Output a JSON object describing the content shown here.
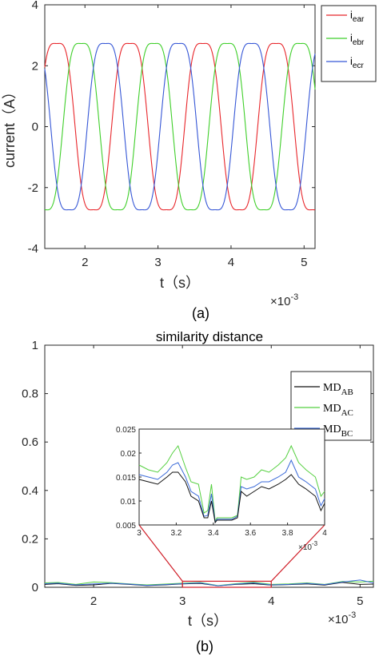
{
  "chart_data": [
    {
      "type": "line",
      "caption": "(a)",
      "ylabel": "current（A）",
      "xlabel": "t（s）",
      "x_exponent": "×10",
      "x_exponent_power": "-3",
      "xlim": [
        1.45,
        5.15
      ],
      "ylim": [
        -4,
        4
      ],
      "xticks": [
        "2",
        "3",
        "4",
        "5"
      ],
      "yticks": [
        "4",
        "2",
        "0",
        "-2",
        "-4"
      ],
      "period_ms": 1.0,
      "amplitude": 3.1,
      "series": [
        {
          "name": "i",
          "sub": "ear",
          "color": "#e8262b",
          "phase_deg": 0
        },
        {
          "name": "i",
          "sub": "ebr",
          "color": "#3fcf2a",
          "phase_deg": -120
        },
        {
          "name": "i",
          "sub": "ecr",
          "color": "#3657d6",
          "phase_deg": 120
        }
      ]
    },
    {
      "type": "line",
      "caption": "(b)",
      "title": "similarity distance",
      "xlabel": "t（s）",
      "x_exponent": "×10",
      "x_exponent_power": "-3",
      "xlim": [
        1.45,
        5.15
      ],
      "ylim": [
        0,
        1
      ],
      "xticks": [
        "2",
        "3",
        "4",
        "5"
      ],
      "yticks": [
        "1",
        "0.8",
        "0.6",
        "0.4",
        "0.2",
        "0"
      ],
      "series": [
        {
          "name": "MD",
          "sub": "AB",
          "color": "#111111"
        },
        {
          "name": "MD",
          "sub": "AC",
          "color": "#55d040"
        },
        {
          "name": "MD",
          "sub": "BC",
          "color": "#3a6ad8"
        }
      ],
      "zoom_box": {
        "x": [
          3,
          4
        ],
        "y": [
          0,
          0.025
        ]
      },
      "inset": {
        "xlim": [
          3,
          4
        ],
        "ylim": [
          0.005,
          0.025
        ],
        "xticks": [
          "3",
          "3.2",
          "3.4",
          "3.6",
          "3.8",
          "4"
        ],
        "yticks": [
          "0.025",
          "0.02",
          "0.015",
          "0.01",
          "0.005"
        ],
        "x_exponent": "×10",
        "x_exponent_power": "-3",
        "x": [
          3.0,
          3.05,
          3.1,
          3.15,
          3.18,
          3.21,
          3.25,
          3.28,
          3.32,
          3.35,
          3.37,
          3.39,
          3.41,
          3.42,
          3.45,
          3.5,
          3.53,
          3.55,
          3.58,
          3.62,
          3.66,
          3.7,
          3.75,
          3.79,
          3.82,
          3.86,
          3.9,
          3.95,
          3.98,
          4.0
        ],
        "values": {
          "AB": [
            0.0145,
            0.014,
            0.0135,
            0.015,
            0.016,
            0.016,
            0.014,
            0.011,
            0.01,
            0.0065,
            0.0065,
            0.01,
            0.0055,
            0.006,
            0.006,
            0.006,
            0.0065,
            0.012,
            0.011,
            0.012,
            0.013,
            0.0125,
            0.0135,
            0.0145,
            0.0155,
            0.0135,
            0.0125,
            0.011,
            0.008,
            0.0095
          ],
          "AC": [
            0.0175,
            0.0165,
            0.016,
            0.018,
            0.02,
            0.0215,
            0.017,
            0.014,
            0.0135,
            0.0075,
            0.008,
            0.0135,
            0.0058,
            0.0065,
            0.0065,
            0.0065,
            0.007,
            0.015,
            0.0145,
            0.015,
            0.0165,
            0.016,
            0.0175,
            0.019,
            0.0215,
            0.018,
            0.0165,
            0.015,
            0.011,
            0.012
          ],
          "BC": [
            0.0155,
            0.015,
            0.0145,
            0.016,
            0.0175,
            0.018,
            0.015,
            0.012,
            0.011,
            0.0068,
            0.007,
            0.0115,
            0.0056,
            0.0062,
            0.0062,
            0.0062,
            0.0068,
            0.013,
            0.0125,
            0.013,
            0.014,
            0.014,
            0.015,
            0.016,
            0.0185,
            0.015,
            0.014,
            0.0125,
            0.009,
            0.0105
          ]
        }
      },
      "main_values": {
        "x": [
          1.45,
          1.6,
          1.8,
          2.0,
          2.2,
          2.4,
          2.6,
          2.8,
          3.0,
          3.2,
          3.4,
          3.6,
          3.8,
          4.0,
          4.2,
          4.4,
          4.6,
          4.8,
          5.0,
          5.15
        ],
        "AB": [
          0.012,
          0.015,
          0.008,
          0.01,
          0.016,
          0.012,
          0.007,
          0.01,
          0.014,
          0.016,
          0.006,
          0.012,
          0.015,
          0.009,
          0.011,
          0.014,
          0.009,
          0.02,
          0.012,
          0.013
        ],
        "AC": [
          0.018,
          0.02,
          0.012,
          0.022,
          0.019,
          0.014,
          0.01,
          0.013,
          0.017,
          0.02,
          0.007,
          0.015,
          0.021,
          0.012,
          0.014,
          0.018,
          0.012,
          0.024,
          0.022,
          0.025
        ],
        "BC": [
          0.015,
          0.017,
          0.01,
          0.014,
          0.017,
          0.013,
          0.008,
          0.011,
          0.015,
          0.018,
          0.006,
          0.013,
          0.018,
          0.01,
          0.012,
          0.016,
          0.011,
          0.022,
          0.03,
          0.018
        ]
      }
    }
  ]
}
